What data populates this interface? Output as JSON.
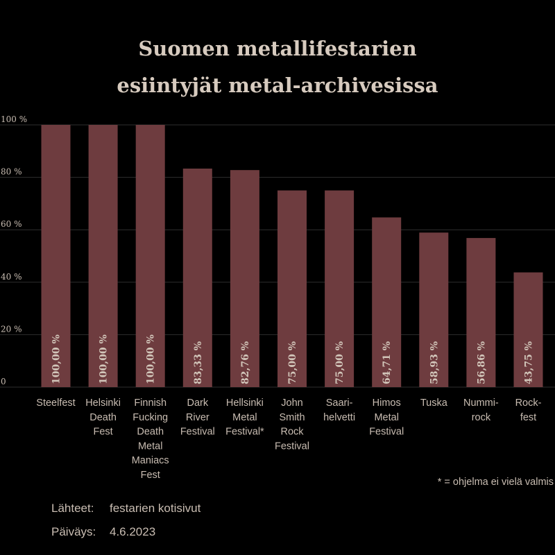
{
  "chart_data": {
    "type": "bar",
    "title_lines": [
      "Suomen metallifestarien",
      "esiintyjät metal-archivesissa"
    ],
    "categories": [
      [
        "Steelfest"
      ],
      [
        "Helsinki",
        "Death",
        "Fest"
      ],
      [
        "Finnish",
        "Fucking",
        "Death",
        "Metal",
        "Maniacs",
        "Fest"
      ],
      [
        "Dark",
        "River",
        "Festival"
      ],
      [
        "Hellsinki",
        "Metal",
        "Festival*"
      ],
      [
        "John",
        "Smith",
        "Rock",
        "Festival"
      ],
      [
        "Saari-",
        "helvetti"
      ],
      [
        "Himos",
        "Metal",
        "Festival"
      ],
      [
        "Tuska"
      ],
      [
        "Nummi-",
        "rock"
      ],
      [
        "Rock-",
        "fest"
      ]
    ],
    "values": [
      100.0,
      100.0,
      100.0,
      83.33,
      82.76,
      75.0,
      75.0,
      64.71,
      58.93,
      56.86,
      43.75
    ],
    "data_labels": [
      "100,00 %",
      "100,00 %",
      "100,00 %",
      "83,33 %",
      "82,76 %",
      "75,00 %",
      "75,00 %",
      "64,71 %",
      "58,93 %",
      "56,86 %",
      "43,75 %"
    ],
    "yticks": [
      0,
      20,
      40,
      60,
      80,
      100
    ],
    "ytick_labels": [
      "0",
      "20 %",
      "40 %",
      "60 %",
      "80 %",
      "100 %"
    ],
    "ylim": [
      0,
      100
    ],
    "grid": true,
    "colors": {
      "bar": "#6e3c3f",
      "grid": "#2e2e2e",
      "text": "#c9bdb2"
    }
  },
  "footnote": "* = ohjelma ei vielä valmis",
  "sources": {
    "label": "Lähteet:",
    "value": "festarien kotisivut",
    "date_label": "Päiväys:",
    "date_value": "4.6.2023"
  }
}
